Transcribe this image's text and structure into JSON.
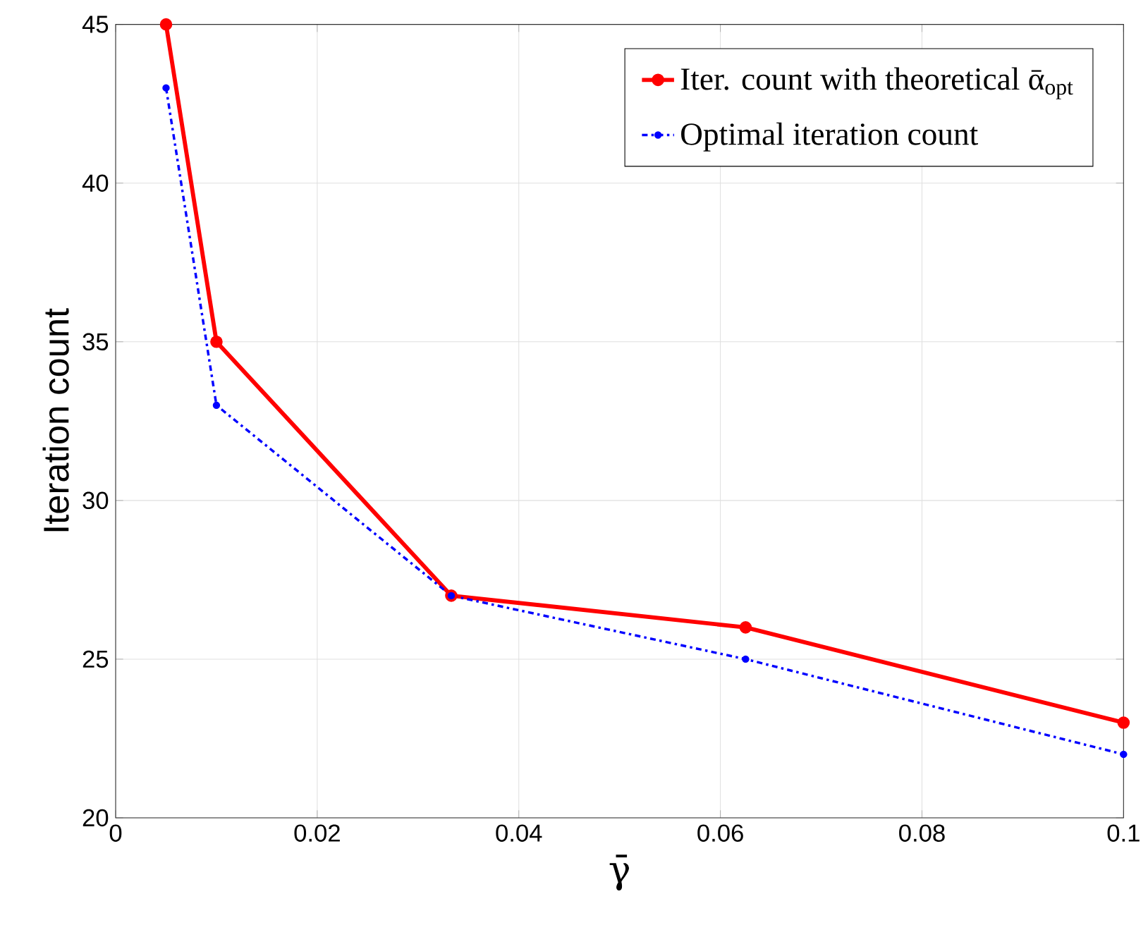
{
  "chart_data": {
    "type": "line",
    "xlabel": "γ̄",
    "ylabel": "Iteration count",
    "x": [
      0.005,
      0.01,
      0.0333,
      0.0625,
      0.1
    ],
    "series": [
      {
        "name": "Iter. count with theoretical ᾱ$_{opt}$",
        "color": "#ff0000",
        "values": [
          45,
          35,
          27,
          26,
          23
        ],
        "line_style": "solid"
      },
      {
        "name": "Optimal iteration count",
        "color": "#0000ff",
        "values": [
          43,
          33,
          27,
          25,
          22
        ],
        "line_style": "dashdot"
      }
    ],
    "xlim": [
      0,
      0.1
    ],
    "ylim": [
      20,
      45
    ],
    "xticks": [
      0,
      0.02,
      0.04,
      0.06,
      0.08,
      0.1
    ],
    "yticks": [
      20,
      25,
      30,
      35,
      40,
      45
    ],
    "grid": true,
    "legend": "top right",
    "marker": "circle"
  }
}
